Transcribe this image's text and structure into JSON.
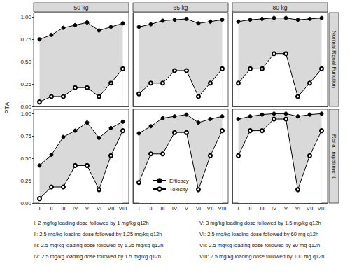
{
  "chart_data": {
    "type": "line",
    "y_label": "PTA",
    "columns": [
      "50 kg",
      "65 kg",
      "80 kg"
    ],
    "rows": [
      "Normal Renal Function",
      "Renal impairment"
    ],
    "categories": [
      "I",
      "II",
      "III",
      "IV",
      "V",
      "VI",
      "VII",
      "VIII"
    ],
    "ylim": [
      0,
      1.05
    ],
    "yticks": [
      {
        "value": 0,
        "label": "0.00"
      },
      {
        "value": 0.25,
        "label": "0.25"
      },
      {
        "value": 0.5,
        "label": "0.50"
      },
      {
        "value": 0.75,
        "label": "0.75"
      },
      {
        "value": 1,
        "label": "1.00"
      }
    ],
    "grid": false,
    "panels": [
      {
        "column": "50 kg",
        "row": "Normal Renal Function",
        "series": [
          {
            "name": "Efficacy",
            "color": "#000000",
            "marker": "circle",
            "values": [
              0.75,
              0.8,
              0.88,
              0.91,
              0.94,
              0.85,
              0.89,
              0.93
            ]
          },
          {
            "name": "Toxicity",
            "color": "#000000",
            "marker": "circle-open",
            "values": [
              0.05,
              0.11,
              0.11,
              0.21,
              0.21,
              0.11,
              0.26,
              0.42
            ]
          }
        ]
      },
      {
        "column": "65 kg",
        "row": "Normal Renal Function",
        "series": [
          {
            "name": "Efficacy",
            "color": "#000000",
            "marker": "circle",
            "values": [
              0.89,
              0.92,
              0.96,
              0.97,
              0.98,
              0.93,
              0.95,
              0.97
            ]
          },
          {
            "name": "Toxicity",
            "color": "#000000",
            "marker": "circle-open",
            "values": [
              0.14,
              0.26,
              0.26,
              0.4,
              0.4,
              0.11,
              0.26,
              0.42
            ]
          }
        ]
      },
      {
        "column": "80 kg",
        "row": "Normal Renal Function",
        "series": [
          {
            "name": "Efficacy",
            "color": "#000000",
            "marker": "circle",
            "values": [
              0.95,
              0.97,
              0.98,
              0.99,
              0.99,
              0.97,
              0.98,
              0.99
            ]
          },
          {
            "name": "Toxicity",
            "color": "#000000",
            "marker": "circle-open",
            "values": [
              0.26,
              0.42,
              0.42,
              0.59,
              0.59,
              0.11,
              0.26,
              0.42
            ]
          }
        ]
      },
      {
        "column": "50 kg",
        "row": "Renal impairment",
        "series": [
          {
            "name": "Efficacy",
            "color": "#000000",
            "marker": "circle",
            "values": [
              0.42,
              0.54,
              0.74,
              0.81,
              0.9,
              0.73,
              0.84,
              0.91
            ]
          },
          {
            "name": "Toxicity",
            "color": "#000000",
            "marker": "circle-open",
            "values": [
              0.05,
              0.18,
              0.18,
              0.42,
              0.42,
              0.15,
              0.53,
              0.81
            ]
          }
        ]
      },
      {
        "column": "65 kg",
        "row": "Renal impairment",
        "series": [
          {
            "name": "Efficacy",
            "color": "#000000",
            "marker": "circle",
            "values": [
              0.78,
              0.86,
              0.95,
              0.97,
              0.99,
              0.9,
              0.94,
              0.97
            ]
          },
          {
            "name": "Toxicity",
            "color": "#000000",
            "marker": "circle-open",
            "values": [
              0.23,
              0.55,
              0.55,
              0.79,
              0.79,
              0.15,
              0.53,
              0.81
            ]
          }
        ]
      },
      {
        "column": "80 kg",
        "row": "Renal impairment",
        "series": [
          {
            "name": "Efficacy",
            "color": "#000000",
            "marker": "circle",
            "values": [
              0.94,
              0.97,
              0.99,
              1.0,
              1.0,
              0.97,
              0.99,
              1.0
            ]
          },
          {
            "name": "Toxicity",
            "color": "#000000",
            "marker": "circle-open",
            "values": [
              0.53,
              0.81,
              0.81,
              0.94,
              0.94,
              0.15,
              0.53,
              0.81
            ]
          }
        ]
      }
    ],
    "annotations": [
      "I: 2 mg/kg loading dose followed by 1 mg/kg q12h",
      "II: 2.5 mg/kg loading dose followed by 1.25 mg/kg q12h",
      "III: 2.5 mg/kg loading dose followed by 1.25 mg/kg q12h",
      "IV: 2.5 mg/kg loading dose followed by 1.5 mg/kg q12h",
      "V: 3 mg/kg loading dose followed by 1.5 mg/kg q12h",
      "VI: 2.5 mg/kg loading dose followed by 60 mg q12h",
      "VII: 2.5 mg/kg loading dose followed by 80 mg q12h",
      "VIII: 2.5 mg/kg loading dose followed by 100 mg q12h"
    ]
  }
}
